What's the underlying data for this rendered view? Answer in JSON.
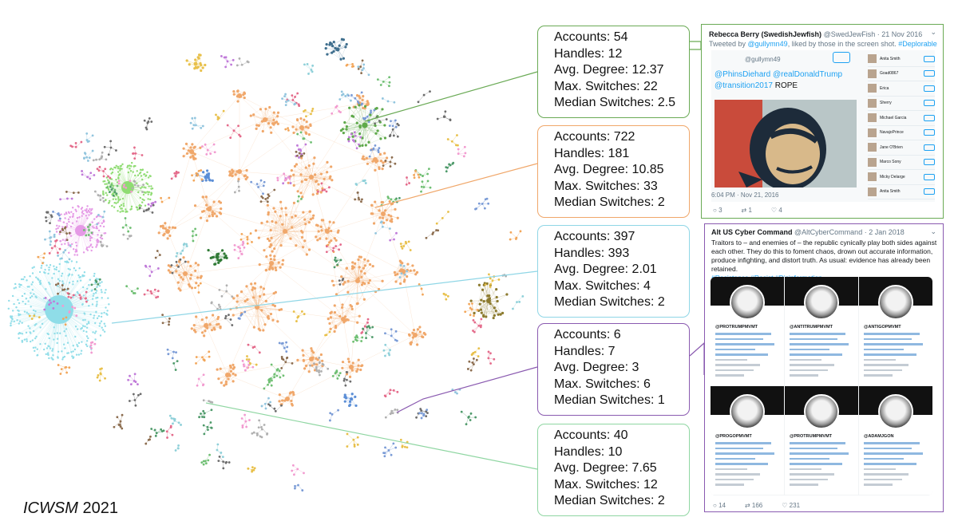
{
  "caption": {
    "venue": "ICWSM",
    "year": "2021"
  },
  "stat_boxes": [
    {
      "id": "green",
      "color": "#6aaa55",
      "accounts": "Accounts: 54",
      "handles": "Handles: 12",
      "avg_degree": "Avg. Degree: 12.37",
      "max_switches": "Max. Switches: 22",
      "median_switches": "Median Switches: 2.5"
    },
    {
      "id": "orange",
      "color": "#f0a76a",
      "accounts": "Accounts: 722",
      "handles": "Handles: 181",
      "avg_degree": "Avg. Degree: 10.85",
      "max_switches": "Max. Switches: 33",
      "median_switches": "Median Switches: 2"
    },
    {
      "id": "cyan",
      "color": "#8fd6e6",
      "accounts": "Accounts: 397",
      "handles": "Handles: 393",
      "avg_degree": "Avg. Degree: 2.01",
      "max_switches": "Max. Switches: 4",
      "median_switches": "Median Switches: 2"
    },
    {
      "id": "purple",
      "color": "#8a5ab0",
      "accounts": "Accounts: 6",
      "handles": "Handles: 7",
      "avg_degree": "Avg. Degree: 3",
      "max_switches": "Max. Switches: 6",
      "median_switches": "Median Switches: 1"
    },
    {
      "id": "lightgreen",
      "color": "#8fd6a2",
      "accounts": "Accounts: 40",
      "handles": "Handles: 10",
      "avg_degree": "Avg. Degree: 7.65",
      "max_switches": "Max. Switches: 12",
      "median_switches": "Median Switches: 2"
    }
  ],
  "tweet1": {
    "name": "Rebecca Berry (SwedishJewfish)",
    "handle": "@SwedJewFish · 21 Nov 2016",
    "sub_prefix": "Tweeted by ",
    "sub_user": "@gullymn49",
    "sub_mid": ", liked by those in the screen shot. ",
    "sub_tag": "#Deplorable",
    "quoted_handle": "@gullymn49",
    "mentions": "@PhinsDiehard @realDonaldTrump",
    "mentions2": "@transition2017",
    "word": " ROPE",
    "time": "6:04 PM · Nov 21, 2016",
    "replies": "3",
    "retweets": "1",
    "likes": "4",
    "likers": [
      "Anita Smith",
      "Goad0867",
      "Erica",
      "Sherry",
      "Michael Garcia",
      "NavajoPrince",
      "Jane O'Brien",
      "Marco Sony",
      "Micky Delarge",
      "Anita Smith"
    ],
    "border_color": "#6aaa55"
  },
  "tweet2": {
    "name": "Alt US Cyber Command",
    "handle": "@AltCyberCommand · 2 Jan 2018",
    "body": "Traitors to – and enemies of – the republic cynically play both sides against each other. They do this to foment chaos, drown out accurate information, produce infighting, and distort truth. As usual: evidence has already been retained.",
    "tags": "#Resistance #Resist #Disinformation",
    "profiles": [
      "@PROTRUMPMVMT",
      "@ANTITRUMPMVMT",
      "@ANTIGOPMVMT",
      "@PROGOPMVMT",
      "@PROTRUMPMVMT",
      "@ADAMJGON"
    ],
    "replies": "14",
    "retweets": "166",
    "likes": "231",
    "border_color": "#8a5ab0"
  }
}
